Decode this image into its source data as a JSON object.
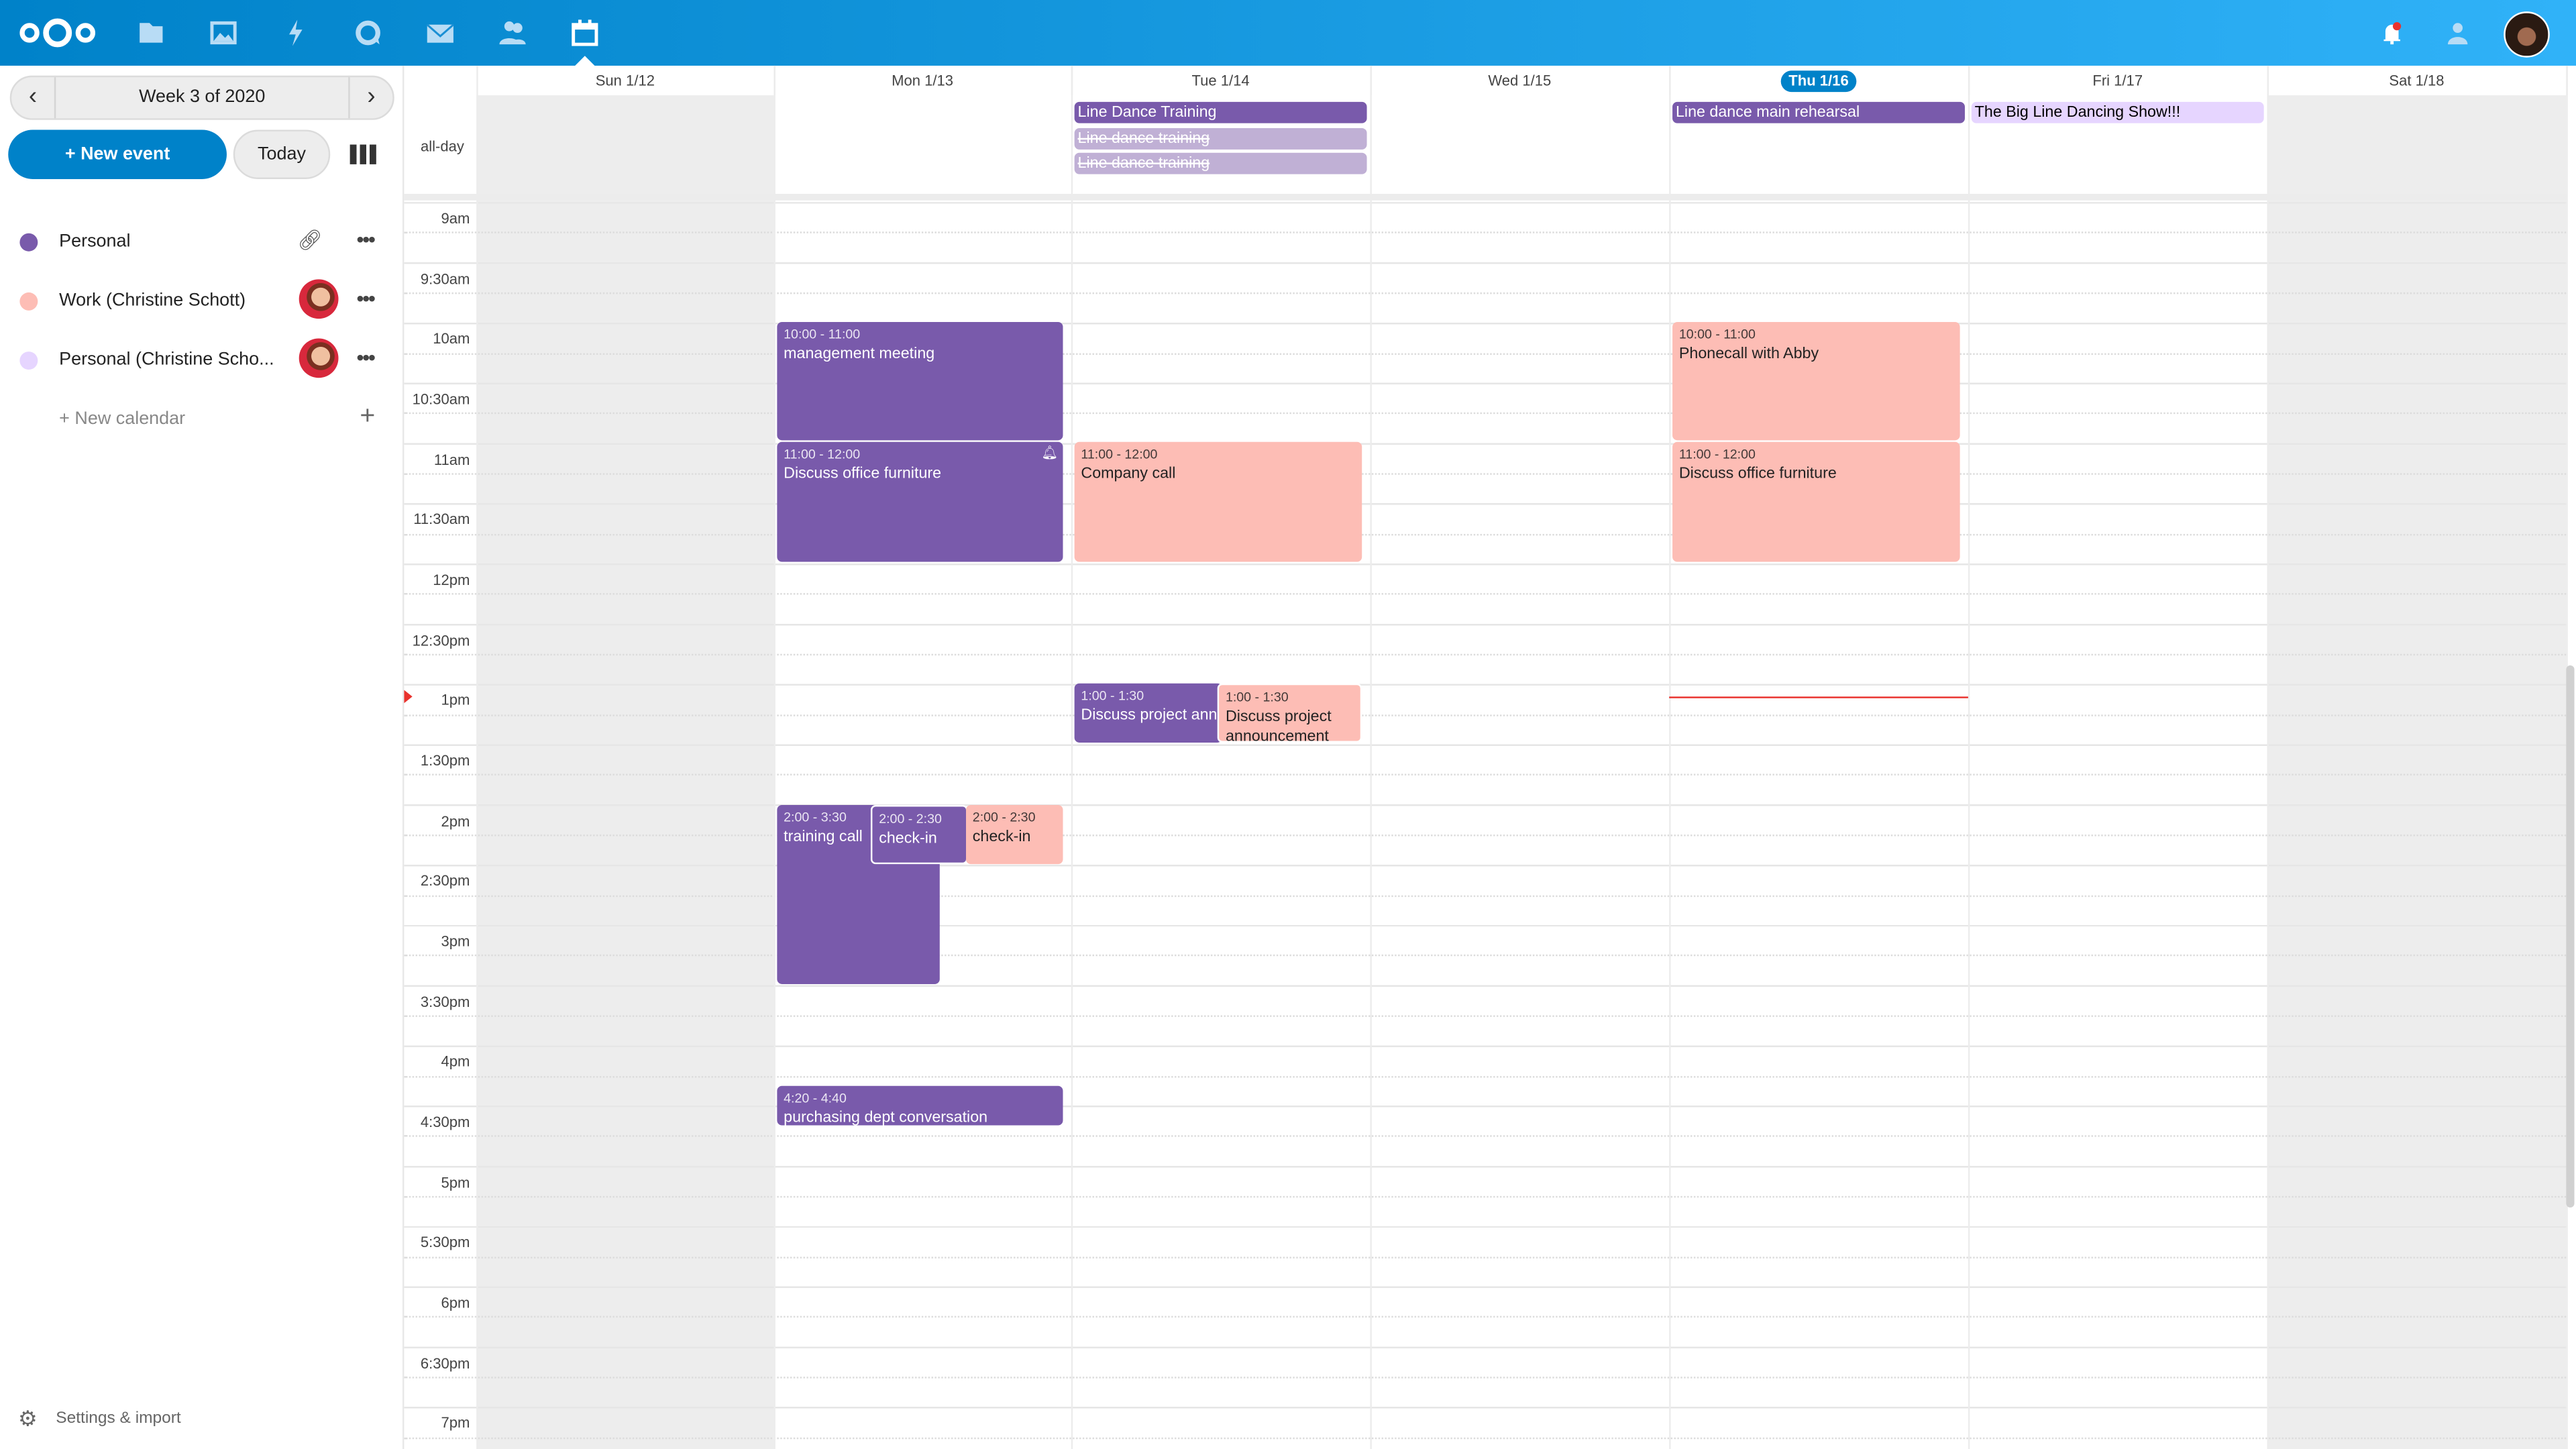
{
  "topbar": {
    "apps": [
      "logo-icon",
      "files-icon",
      "photos-icon",
      "activity-icon",
      "talk-icon",
      "mail-icon",
      "contacts-icon",
      "calendar-icon"
    ],
    "active": "calendar-icon",
    "notification_dot_color": "#e9322d"
  },
  "sidebar": {
    "week_label": "Week 3 of 2020",
    "new_event": "+ New event",
    "today": "Today",
    "calendars": [
      {
        "label": "Personal",
        "color": "#795aab"
      },
      {
        "label": "Work (Christine Schott)",
        "color": "#fdbdb5"
      },
      {
        "label": "Personal (Christine Scho...",
        "color": "#e6d5ff"
      }
    ],
    "new_calendar": "+ New calendar",
    "settings": "Settings & import"
  },
  "calendar": {
    "days": [
      "Sun 1/12",
      "Mon 1/13",
      "Tue 1/14",
      "Wed 1/15",
      "Thu 1/16",
      "Fri 1/17",
      "Sat 1/18"
    ],
    "today_index": 4,
    "allday_label": "all-day",
    "hours": [
      "9am",
      "9:30am",
      "10am",
      "10:30am",
      "11am",
      "11:30am",
      "12pm",
      "12:30pm",
      "1pm",
      "1:30pm",
      "2pm",
      "2:30pm",
      "3pm",
      "3:30pm",
      "4pm",
      "4:30pm",
      "5pm",
      "5:30pm",
      "6pm",
      "6:30pm",
      "7pm"
    ],
    "allday_events": [
      {
        "title": "Line Dance Training",
        "day": "Tue 1/14",
        "color": "#795aab"
      },
      {
        "title": "Line dance training",
        "day": "Tue 1/14",
        "color": "#c0b0d5",
        "cancelled": true
      },
      {
        "title": "Line dance training",
        "day": "Tue 1/14",
        "color": "#c0b0d5",
        "cancelled": true
      },
      {
        "title": "Line dance main rehearsal",
        "day": "Thu 1/16",
        "color": "#795aab"
      },
      {
        "title": "The Big Line Dancing Show!!!",
        "day": "Fri 1/17",
        "color": "#e6d5ff"
      }
    ],
    "events": [
      {
        "time": "10:00 - 11:00",
        "title": "management meeting",
        "day": "Mon 1/13"
      },
      {
        "time": "11:00 - 12:00",
        "title": "Discuss office furniture",
        "day": "Mon 1/13",
        "reminder": true
      },
      {
        "time": "11:00 - 12:00",
        "title": "Company call",
        "day": "Tue 1/14"
      },
      {
        "time": "10:00 - 11:00",
        "title": "Phonecall with Abby",
        "day": "Thu 1/16"
      },
      {
        "time": "11:00 - 12:00",
        "title": "Discuss office furniture",
        "day": "Thu 1/16"
      },
      {
        "time": "1:00 - 1:30",
        "title": "Discuss project announcement",
        "day": "Tue 1/14"
      },
      {
        "time": "1:00 - 1:30",
        "title": "Discuss project announcement",
        "day": "Tue 1/14"
      },
      {
        "time": "2:00 - 3:30",
        "title": "training call",
        "day": "Mon 1/13"
      },
      {
        "time": "2:00 - 2:30",
        "title": "check-in",
        "day": "Mon 1/13"
      },
      {
        "time": "2:00 - 2:30",
        "title": "check-in",
        "day": "Mon 1/13"
      },
      {
        "time": "4:20 - 4:40",
        "title": "purchasing dept conversation",
        "day": "Mon 1/13"
      }
    ],
    "current_time": "1:06pm",
    "colors": {
      "personal": "#795aab",
      "work": "#fdbdb5",
      "personal_shared": "#e6d5ff",
      "now": "#e9322d"
    }
  }
}
